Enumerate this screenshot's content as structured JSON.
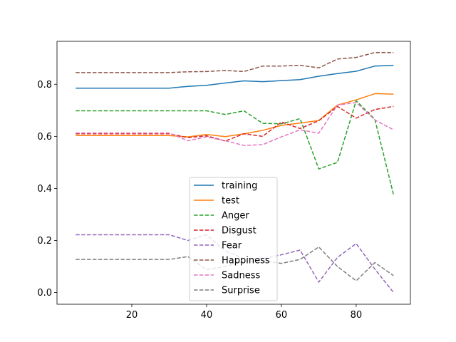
{
  "chart_data": {
    "type": "line",
    "title": "",
    "xlabel": "",
    "ylabel": "",
    "xlim": [
      0,
      94.5
    ],
    "ylim": [
      -0.045,
      0.965
    ],
    "grid": false,
    "legend_position": "lower-center",
    "x": [
      5,
      10,
      15,
      20,
      25,
      30,
      35,
      40,
      45,
      50,
      55,
      60,
      65,
      70,
      75,
      80,
      85,
      90
    ],
    "x_ticks": [
      {
        "value": 20,
        "label": "20"
      },
      {
        "value": 40,
        "label": "40"
      },
      {
        "value": 60,
        "label": "60"
      },
      {
        "value": 80,
        "label": "80"
      }
    ],
    "y_ticks": [
      {
        "value": 0.0,
        "label": "0.0"
      },
      {
        "value": 0.2,
        "label": "0.2"
      },
      {
        "value": 0.4,
        "label": "0.4"
      },
      {
        "value": 0.6,
        "label": "0.6"
      },
      {
        "value": 0.8,
        "label": "0.8"
      }
    ],
    "series": [
      {
        "name": "training",
        "color": "#1f77b4",
        "style": "solid",
        "values": [
          0.785,
          0.785,
          0.785,
          0.785,
          0.785,
          0.785,
          0.792,
          0.796,
          0.805,
          0.813,
          0.81,
          0.814,
          0.818,
          0.831,
          0.841,
          0.85,
          0.87,
          0.873
        ]
      },
      {
        "name": "test",
        "color": "#ff7f0e",
        "style": "solid",
        "values": [
          0.603,
          0.603,
          0.603,
          0.603,
          0.603,
          0.603,
          0.598,
          0.607,
          0.599,
          0.61,
          0.623,
          0.642,
          0.651,
          0.661,
          0.72,
          0.74,
          0.764,
          0.762
        ]
      },
      {
        "name": "Anger",
        "color": "#2ca02c",
        "style": "dashed",
        "values": [
          0.698,
          0.698,
          0.698,
          0.698,
          0.698,
          0.698,
          0.698,
          0.698,
          0.684,
          0.698,
          0.65,
          0.648,
          0.668,
          0.475,
          0.5,
          0.737,
          0.665,
          0.375
        ]
      },
      {
        "name": "Disgust",
        "color": "#d62728",
        "style": "dashed",
        "values": [
          0.61,
          0.61,
          0.61,
          0.61,
          0.61,
          0.61,
          0.595,
          0.602,
          0.582,
          0.61,
          0.6,
          0.655,
          0.63,
          0.66,
          0.715,
          0.67,
          0.703,
          0.715
        ]
      },
      {
        "name": "Fear",
        "color": "#9467bd",
        "style": "dashed",
        "values": [
          0.222,
          0.222,
          0.222,
          0.222,
          0.222,
          0.222,
          0.2,
          0.222,
          0.16,
          0.13,
          0.13,
          0.145,
          0.163,
          0.04,
          0.135,
          0.188,
          0.09,
          0.0
        ]
      },
      {
        "name": "Happiness",
        "color": "#8c564b",
        "style": "dashed",
        "values": [
          0.845,
          0.845,
          0.845,
          0.845,
          0.845,
          0.845,
          0.848,
          0.849,
          0.853,
          0.849,
          0.87,
          0.87,
          0.873,
          0.863,
          0.897,
          0.903,
          0.922,
          0.922
        ]
      },
      {
        "name": "Sadness",
        "color": "#e377c2",
        "style": "dashed",
        "values": [
          0.613,
          0.613,
          0.613,
          0.613,
          0.613,
          0.613,
          0.583,
          0.598,
          0.583,
          0.565,
          0.568,
          0.598,
          0.625,
          0.612,
          0.72,
          0.73,
          0.663,
          0.625
        ]
      },
      {
        "name": "Surprise",
        "color": "#7f7f7f",
        "style": "dashed",
        "values": [
          0.127,
          0.127,
          0.127,
          0.127,
          0.127,
          0.127,
          0.138,
          0.088,
          0.1,
          0.12,
          0.122,
          0.112,
          0.127,
          0.175,
          0.1,
          0.045,
          0.115,
          0.065
        ]
      }
    ]
  }
}
